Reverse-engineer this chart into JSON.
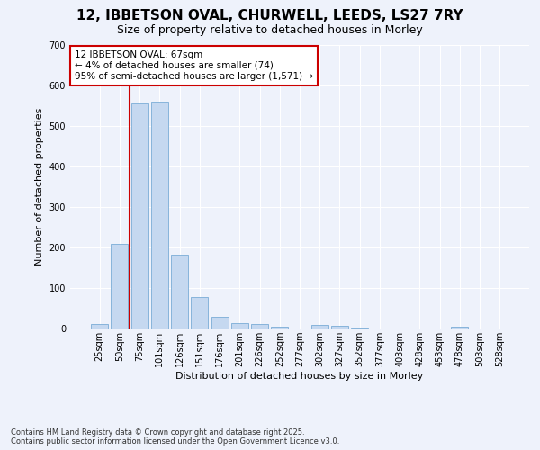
{
  "title_line1": "12, IBBETSON OVAL, CHURWELL, LEEDS, LS27 7RY",
  "title_line2": "Size of property relative to detached houses in Morley",
  "xlabel": "Distribution of detached houses by size in Morley",
  "ylabel": "Number of detached properties",
  "bar_color": "#c5d8f0",
  "bar_edge_color": "#7aacd6",
  "categories": [
    "25sqm",
    "50sqm",
    "75sqm",
    "101sqm",
    "126sqm",
    "151sqm",
    "176sqm",
    "201sqm",
    "226sqm",
    "252sqm",
    "277sqm",
    "302sqm",
    "327sqm",
    "352sqm",
    "377sqm",
    "403sqm",
    "428sqm",
    "453sqm",
    "478sqm",
    "503sqm",
    "528sqm"
  ],
  "values": [
    12,
    210,
    556,
    560,
    182,
    78,
    30,
    13,
    12,
    5,
    0,
    10,
    6,
    3,
    0,
    0,
    0,
    0,
    4,
    0,
    0
  ],
  "ylim": [
    0,
    700
  ],
  "yticks": [
    0,
    100,
    200,
    300,
    400,
    500,
    600,
    700
  ],
  "red_line_x": 1.5,
  "annotation_text": "12 IBBETSON OVAL: 67sqm\n← 4% of detached houses are smaller (74)\n95% of semi-detached houses are larger (1,571) →",
  "annotation_box_color": "#ffffff",
  "annotation_border_color": "#cc0000",
  "red_line_color": "#cc0000",
  "footnote": "Contains HM Land Registry data © Crown copyright and database right 2025.\nContains public sector information licensed under the Open Government Licence v3.0.",
  "background_color": "#eef2fb",
  "grid_color": "#ffffff",
  "title_fontsize": 11,
  "subtitle_fontsize": 9,
  "ylabel_fontsize": 8,
  "xlabel_fontsize": 8,
  "tick_fontsize": 7,
  "annot_fontsize": 7.5,
  "footnote_fontsize": 6
}
